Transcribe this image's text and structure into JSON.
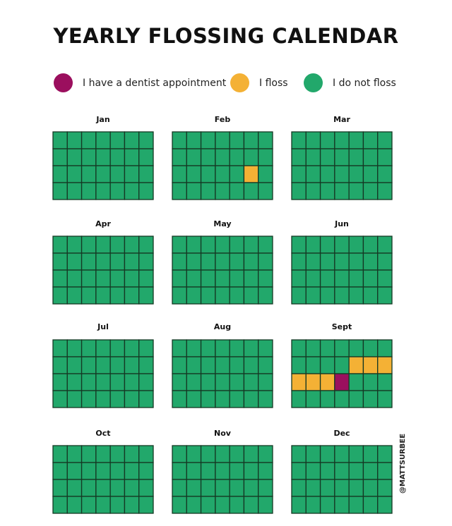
{
  "chart_data": {
    "type": "heatmap",
    "title": "YEARLY FLOSSING CALENDAR",
    "legend": [
      {
        "key": "dentist",
        "label": "I have a dentist appointment",
        "color": "#9b0f5e"
      },
      {
        "key": "floss",
        "label": "I floss",
        "color": "#f4b135"
      },
      {
        "key": "no_floss",
        "label": "I do not floss",
        "color": "#22a86b"
      }
    ],
    "default_status": "no_floss",
    "grid_color": "#153824",
    "months": [
      {
        "name": "Jan",
        "rows": 4,
        "cols": 7,
        "marked": []
      },
      {
        "name": "Feb",
        "rows": 4,
        "cols": 7,
        "marked": [
          {
            "row": 3,
            "col": 6,
            "status": "floss"
          }
        ]
      },
      {
        "name": "Mar",
        "rows": 4,
        "cols": 7,
        "marked": []
      },
      {
        "name": "Apr",
        "rows": 4,
        "cols": 7,
        "marked": []
      },
      {
        "name": "May",
        "rows": 4,
        "cols": 7,
        "marked": []
      },
      {
        "name": "Jun",
        "rows": 4,
        "cols": 7,
        "marked": []
      },
      {
        "name": "Jul",
        "rows": 4,
        "cols": 7,
        "marked": []
      },
      {
        "name": "Aug",
        "rows": 4,
        "cols": 7,
        "marked": []
      },
      {
        "name": "Sept",
        "rows": 4,
        "cols": 7,
        "marked": [
          {
            "row": 2,
            "col": 5,
            "status": "floss"
          },
          {
            "row": 2,
            "col": 6,
            "status": "floss"
          },
          {
            "row": 2,
            "col": 7,
            "status": "floss"
          },
          {
            "row": 3,
            "col": 1,
            "status": "floss"
          },
          {
            "row": 3,
            "col": 2,
            "status": "floss"
          },
          {
            "row": 3,
            "col": 3,
            "status": "floss"
          },
          {
            "row": 3,
            "col": 4,
            "status": "dentist"
          }
        ]
      },
      {
        "name": "Oct",
        "rows": 4,
        "cols": 7,
        "marked": []
      },
      {
        "name": "Nov",
        "rows": 4,
        "cols": 7,
        "marked": []
      },
      {
        "name": "Dec",
        "rows": 4,
        "cols": 7,
        "marked": []
      }
    ],
    "credit": "@MATTSURBEE"
  }
}
